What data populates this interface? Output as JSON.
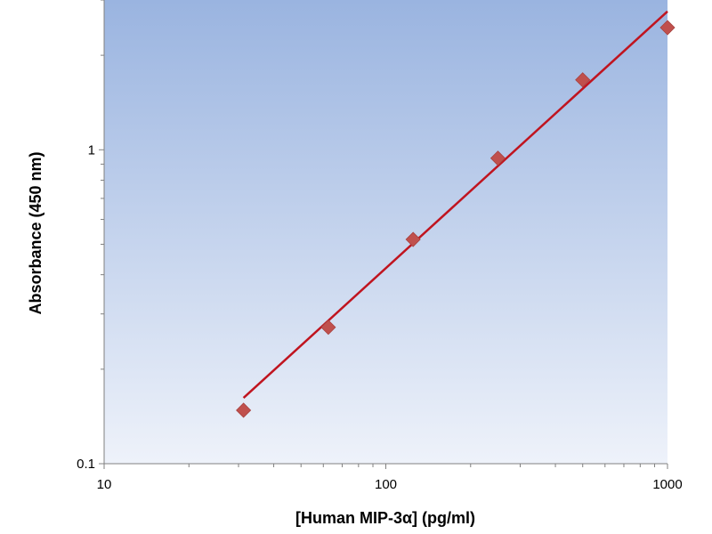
{
  "chart_data": {
    "type": "scatter",
    "title": "",
    "xlabel": "[Human MIP-3α] (pg/ml)",
    "ylabel": "Absorbance (450 nm)",
    "x_scale": "log",
    "y_scale": "log",
    "xlim": [
      10,
      1000
    ],
    "ylim": [
      0.1,
      3
    ],
    "x_ticks": [
      {
        "value": 10,
        "label": "10"
      },
      {
        "value": 100,
        "label": "100"
      },
      {
        "value": 1000,
        "label": "1000"
      }
    ],
    "y_ticks": [
      {
        "value": 0.1,
        "label": "0.1"
      },
      {
        "value": 1,
        "label": "1"
      }
    ],
    "grid": false,
    "legend": "none",
    "series": [
      {
        "marker": "diamond",
        "x": [
          31.25,
          62.5,
          125,
          250,
          500,
          1000
        ],
        "y": [
          0.148,
          0.272,
          0.518,
          0.94,
          1.67,
          2.45
        ]
      }
    ],
    "fit_line": {
      "x": [
        31.25,
        1000
      ],
      "y": [
        0.162,
        2.76
      ]
    },
    "colors": {
      "background_top": "#9ab4e0",
      "background_bottom": "#eef2fa",
      "marker": "#c0504d",
      "line": "#c0141f",
      "axis": "#808080"
    }
  }
}
